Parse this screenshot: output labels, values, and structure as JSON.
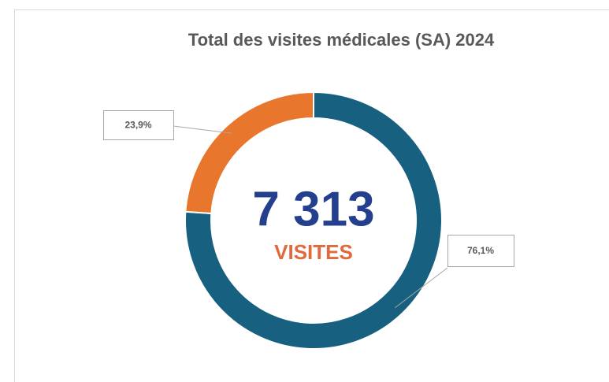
{
  "chart_data": {
    "type": "pie",
    "title": "Total des visites médicales (SA) 2024",
    "categories": [
      null,
      null
    ],
    "values": [
      76.1,
      23.9
    ],
    "value_labels": [
      "76,1%",
      "23,9%"
    ],
    "colors": [
      "#17607f",
      "#e8762d"
    ],
    "donut": true,
    "center_text": "7 313",
    "center_subtext": "VISITES"
  }
}
